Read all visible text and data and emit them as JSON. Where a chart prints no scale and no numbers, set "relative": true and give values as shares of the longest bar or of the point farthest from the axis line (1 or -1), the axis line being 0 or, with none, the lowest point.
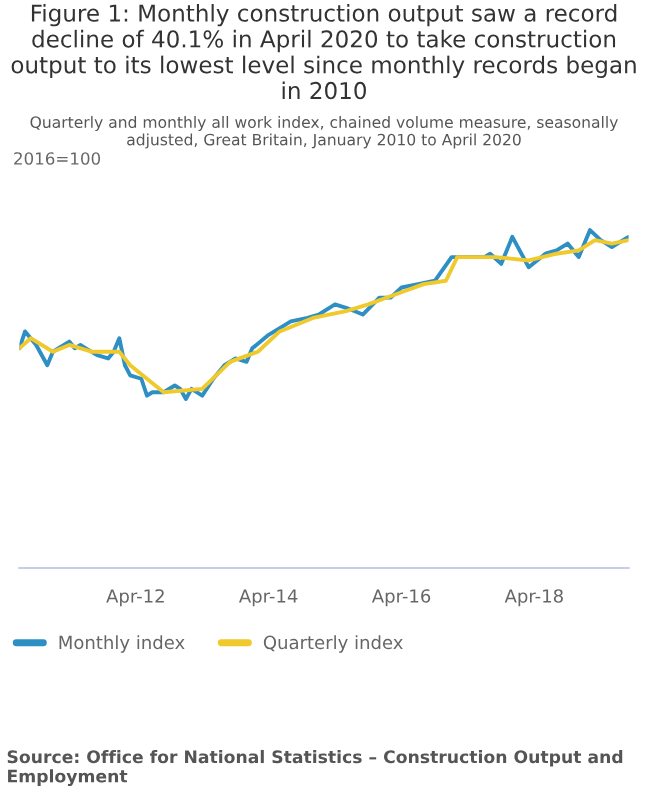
{
  "chart_data": {
    "type": "line",
    "title": "Figure 1: Monthly construction output saw a record decline of 40.1% in April 2020 to take construction output to its lowest level since monthly records began in 2010",
    "subtitle": "Quarterly and monthly all work index, chained volume measure, seasonally adjusted, Great Britain, January 2010 to April 2020",
    "ylabel": "2016=100",
    "relative": true,
    "xlim": [
      "2010-07",
      "2019-09"
    ],
    "xticks": [
      {
        "value": "2012-04",
        "label": "Apr-12"
      },
      {
        "value": "2014-04",
        "label": "Apr-14"
      },
      {
        "value": "2016-04",
        "label": "Apr-16"
      },
      {
        "value": "2018-04",
        "label": "Apr-18"
      }
    ],
    "legend": "bottom left",
    "series": [
      {
        "name": "Monthly index",
        "color": "#2e8fc4",
        "x": [
          "2010-07",
          "2010-08",
          "2010-10",
          "2010-12",
          "2011-01",
          "2011-04",
          "2011-05",
          "2011-06",
          "2011-07",
          "2011-09",
          "2011-11",
          "2011-12",
          "2012-01",
          "2012-02",
          "2012-03",
          "2012-05",
          "2012-06",
          "2012-07",
          "2012-09",
          "2012-11",
          "2012-12",
          "2013-01",
          "2013-02",
          "2013-04",
          "2013-06",
          "2013-08",
          "2013-10",
          "2013-12",
          "2014-01",
          "2014-04",
          "2014-06",
          "2014-08",
          "2014-11",
          "2015-01",
          "2015-04",
          "2015-06",
          "2015-09",
          "2015-12",
          "2016-02",
          "2016-04",
          "2016-07",
          "2016-10",
          "2017-01",
          "2017-03",
          "2017-07",
          "2017-08",
          "2017-10",
          "2017-12",
          "2018-03",
          "2018-06",
          "2018-08",
          "2018-10",
          "2018-12",
          "2019-02",
          "2019-04",
          "2019-06",
          "2019-09"
        ],
        "values": [
          0.65,
          0.7,
          0.66,
          0.6,
          0.64,
          0.67,
          0.65,
          0.66,
          0.65,
          0.63,
          0.62,
          0.64,
          0.68,
          0.6,
          0.57,
          0.56,
          0.51,
          0.52,
          0.52,
          0.54,
          0.53,
          0.5,
          0.53,
          0.51,
          0.56,
          0.6,
          0.62,
          0.61,
          0.65,
          0.69,
          0.71,
          0.73,
          0.74,
          0.75,
          0.78,
          0.77,
          0.75,
          0.8,
          0.8,
          0.83,
          0.84,
          0.85,
          0.92,
          0.92,
          0.92,
          0.93,
          0.9,
          0.98,
          0.89,
          0.93,
          0.94,
          0.96,
          0.92,
          1.0,
          0.97,
          0.95,
          0.98
        ]
      },
      {
        "name": "Quarterly index",
        "color": "#f0c92c",
        "x": [
          "2010-07",
          "2010-09",
          "2011-01",
          "2011-04",
          "2011-08",
          "2012-01",
          "2012-03",
          "2012-09",
          "2013-04",
          "2013-09",
          "2014-02",
          "2014-06",
          "2014-12",
          "2015-06",
          "2015-10",
          "2016-03",
          "2016-08",
          "2016-12",
          "2017-02",
          "2017-09",
          "2018-03",
          "2018-08",
          "2018-12",
          "2019-03",
          "2019-06",
          "2019-09"
        ],
        "values": [
          0.65,
          0.68,
          0.64,
          0.66,
          0.64,
          0.64,
          0.6,
          0.52,
          0.53,
          0.61,
          0.64,
          0.7,
          0.74,
          0.76,
          0.78,
          0.81,
          0.84,
          0.85,
          0.92,
          0.92,
          0.91,
          0.93,
          0.94,
          0.97,
          0.96,
          0.97
        ]
      }
    ],
    "annotations": [
      "Source: Office for National Statistics – Construction Output and Employment"
    ]
  }
}
